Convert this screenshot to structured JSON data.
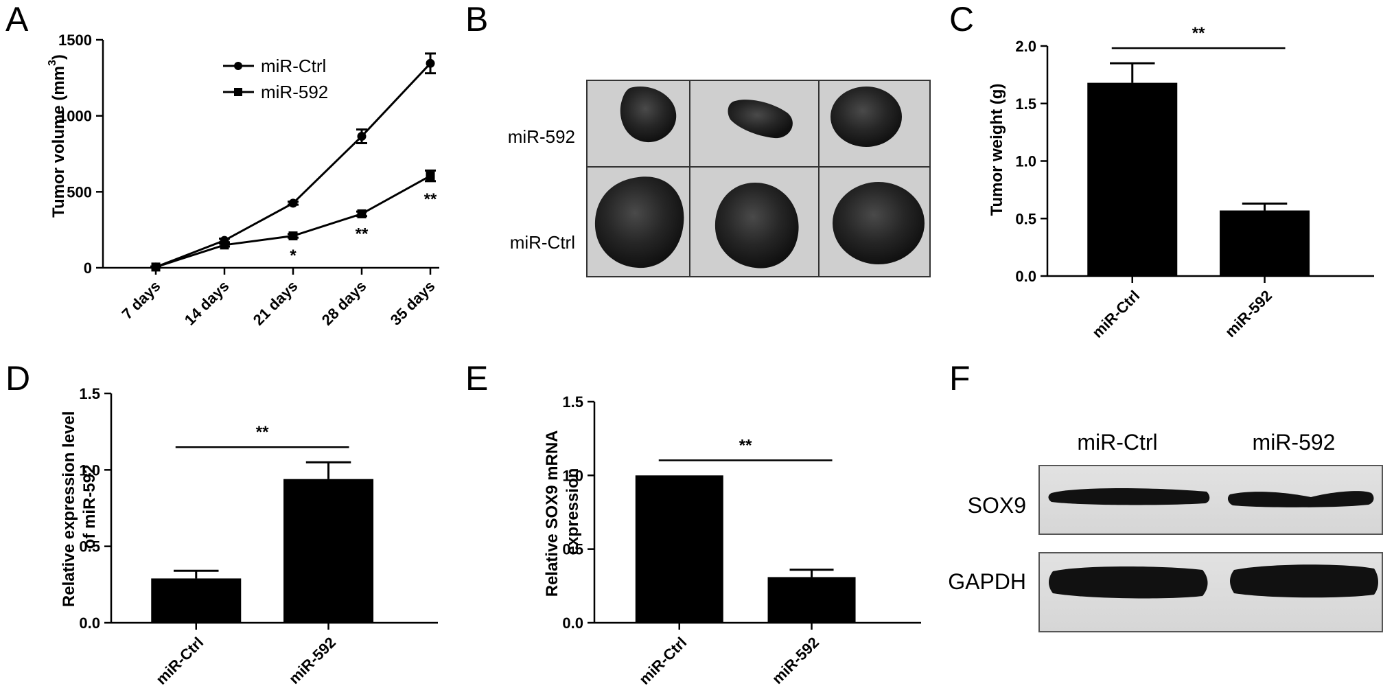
{
  "panels": {
    "A": "A",
    "B": "B",
    "C": "C",
    "D": "D",
    "E": "E",
    "F": "F"
  },
  "chart_data": [
    {
      "panel": "A",
      "type": "line",
      "categories": [
        "7 days",
        "14 days",
        "21 days",
        "28 days",
        "35 days"
      ],
      "ylabel_main": "Tumor volume (mm",
      "ylabel_sup": "3",
      "ylabel_close": ")",
      "ylim": [
        0,
        1500
      ],
      "yticks": [
        "0",
        "500",
        "1000",
        "1500"
      ],
      "yticks_values": [
        0,
        500,
        1000,
        1500
      ],
      "legend_position": "top-center",
      "series": [
        {
          "name": "miR-Ctrl",
          "marker": "circle",
          "values": [
            5,
            180,
            425,
            865,
            1345
          ],
          "errors": [
            3,
            12,
            10,
            45,
            65
          ]
        },
        {
          "name": "miR-592",
          "marker": "square",
          "values": [
            5,
            150,
            210,
            355,
            605
          ],
          "errors": [
            3,
            10,
            12,
            15,
            35
          ]
        }
      ],
      "significance": [
        "",
        "",
        "*",
        "**",
        "**"
      ]
    },
    {
      "panel": "C",
      "type": "bar",
      "categories": [
        "miR-Ctrl",
        "miR-592"
      ],
      "values": [
        1.68,
        0.57
      ],
      "errors": [
        0.17,
        0.06
      ],
      "ylabel": "Tumor weight (g)",
      "ylim": [
        0,
        2.0
      ],
      "yticks": [
        "0.0",
        "0.5",
        "1.0",
        "1.5",
        "2.0"
      ],
      "yticks_values": [
        0,
        0.5,
        1.0,
        1.5,
        2.0
      ],
      "significance": "**"
    },
    {
      "panel": "D",
      "type": "bar",
      "categories": [
        "miR-Ctrl",
        "miR-592"
      ],
      "values": [
        0.29,
        0.94
      ],
      "errors": [
        0.05,
        0.11
      ],
      "ylabel_line1": "Relative expression level",
      "ylabel_line2": "of miR-592",
      "ylim": [
        0,
        1.5
      ],
      "yticks": [
        "0.0",
        "0.5",
        "1.0",
        "1.5"
      ],
      "yticks_values": [
        0,
        0.5,
        1.0,
        1.5
      ],
      "significance": "**"
    },
    {
      "panel": "E",
      "type": "bar",
      "categories": [
        "miR-Ctrl",
        "miR-592"
      ],
      "values": [
        1.0,
        0.31
      ],
      "errors": [
        0.0,
        0.05
      ],
      "ylabel_line1": "Relative SOX9 mRNA",
      "ylabel_line2": "expression",
      "ylim": [
        0,
        1.5
      ],
      "yticks": [
        "0.0",
        "0.5",
        "1.0",
        "1.5"
      ],
      "yticks_values": [
        0,
        0.5,
        1.0,
        1.5
      ],
      "significance": "**"
    }
  ],
  "photo_B": {
    "row_labels": [
      "miR-592",
      "miR-Ctrl"
    ]
  },
  "blot_F": {
    "column_labels": [
      "miR-Ctrl",
      "miR-592"
    ],
    "row_labels": [
      "SOX9",
      "GAPDH"
    ]
  }
}
